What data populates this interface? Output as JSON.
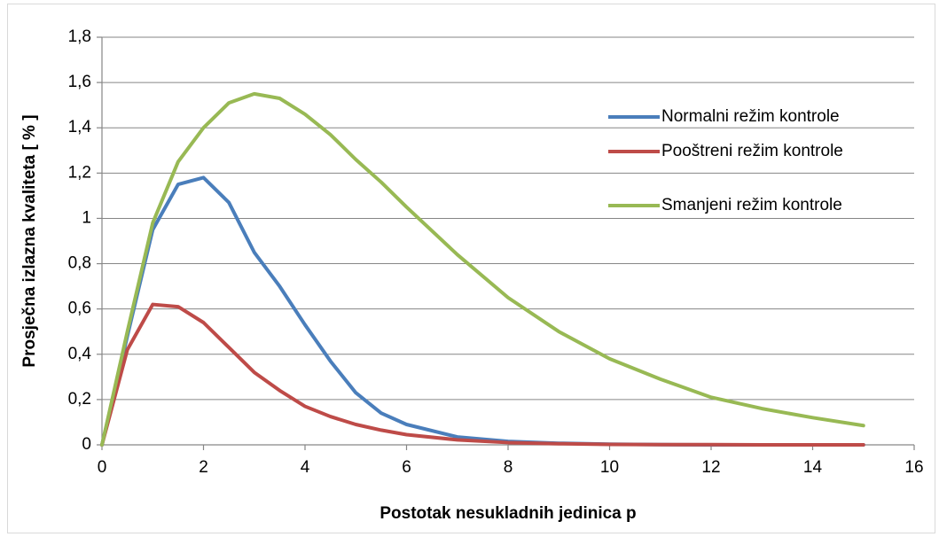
{
  "chart_data": {
    "type": "line",
    "xlabel": "Postotak nesukladnih jedinica p",
    "ylabel": "Prosječna izlazna kvaliteta [ % ]",
    "x": [
      0,
      0.5,
      1,
      1.5,
      2,
      2.5,
      3,
      3.5,
      4,
      4.5,
      5,
      5.5,
      6,
      7,
      8,
      9,
      10,
      11,
      12,
      13,
      14,
      15
    ],
    "series": [
      {
        "name": "Normalni režim kontrole",
        "color": "#4a7ebb",
        "values": [
          0,
          0.48,
          0.95,
          1.15,
          1.18,
          1.07,
          0.85,
          0.7,
          0.53,
          0.37,
          0.23,
          0.14,
          0.09,
          0.035,
          0.015,
          0.007,
          0.003,
          0.001,
          0,
          0,
          0,
          0
        ]
      },
      {
        "name": "Pooštreni režim kontrole",
        "color": "#be4b48",
        "values": [
          0,
          0.42,
          0.62,
          0.61,
          0.54,
          0.43,
          0.32,
          0.24,
          0.17,
          0.125,
          0.09,
          0.065,
          0.045,
          0.022,
          0.01,
          0.005,
          0.002,
          0.001,
          0.001,
          0,
          0,
          0
        ]
      },
      {
        "name": "Smanjeni režim kontrole",
        "color": "#98b954",
        "values": [
          0,
          0.5,
          0.98,
          1.25,
          1.4,
          1.51,
          1.55,
          1.53,
          1.46,
          1.37,
          1.26,
          1.16,
          1.05,
          0.84,
          0.65,
          0.5,
          0.38,
          0.29,
          0.21,
          0.16,
          0.12,
          0.085
        ]
      }
    ],
    "xlim": [
      0,
      16
    ],
    "xticks": [
      0,
      2,
      4,
      6,
      8,
      10,
      12,
      14,
      16
    ],
    "ylim": [
      0,
      1.8
    ],
    "yticks": [
      0,
      {
        "value": 0.2,
        "label": "0,2"
      },
      {
        "value": 0.4,
        "label": "0,4"
      },
      {
        "value": 0.6,
        "label": "0,6"
      },
      {
        "value": 0.8,
        "label": "0,8"
      },
      1,
      {
        "value": 1.2,
        "label": "1,2"
      },
      {
        "value": 1.4,
        "label": "1,4"
      },
      {
        "value": 1.6,
        "label": "1,6"
      },
      {
        "value": 1.8,
        "label": "1,8"
      }
    ],
    "grid": true,
    "legend": "right"
  }
}
